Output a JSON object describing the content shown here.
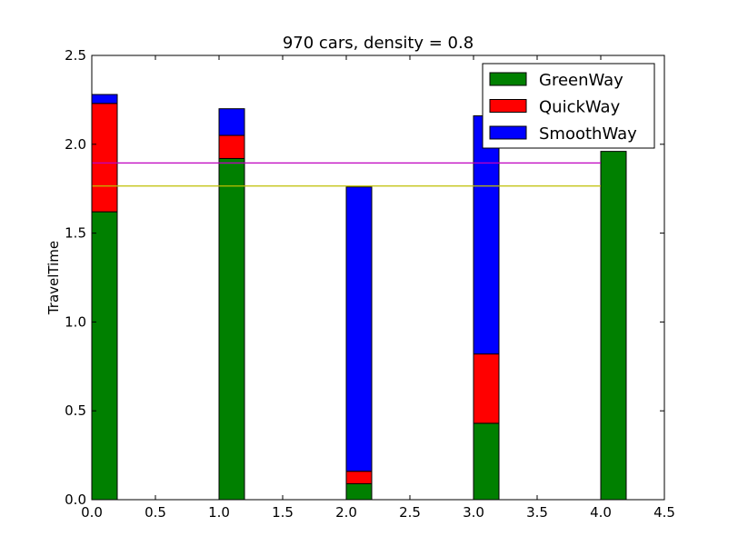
{
  "chart_data": {
    "type": "bar",
    "stacked": true,
    "title": "970 cars, density = 0.8",
    "xlabel": "",
    "ylabel": "TravelTime",
    "xlim": [
      0.0,
      4.5
    ],
    "ylim": [
      0.0,
      2.5
    ],
    "xticks": [
      "0.0",
      "0.5",
      "1.0",
      "1.5",
      "2.0",
      "2.5",
      "3.0",
      "3.5",
      "4.0",
      "4.5"
    ],
    "yticks": [
      "0.0",
      "0.5",
      "1.0",
      "1.5",
      "2.0",
      "2.5"
    ],
    "bar_width": 0.2,
    "x": [
      0,
      1,
      2,
      3,
      4
    ],
    "series": [
      {
        "name": "GreenWay",
        "color": "#008000",
        "values": [
          1.62,
          1.92,
          0.09,
          0.43,
          1.96
        ]
      },
      {
        "name": "QuickWay",
        "color": "#ff0000",
        "values": [
          0.61,
          0.13,
          0.07,
          0.39,
          0.0
        ]
      },
      {
        "name": "SmoothWay",
        "color": "#0000ff",
        "values": [
          0.05,
          0.15,
          1.6,
          1.34,
          0.0
        ]
      }
    ],
    "reference_lines": [
      {
        "color": "#bf00bf",
        "y": 1.895,
        "x": [
          0.0,
          4.0
        ]
      },
      {
        "color": "#bfbf00",
        "y": 1.765,
        "x": [
          0.0,
          4.0
        ]
      }
    ],
    "legend": {
      "position": "top-right",
      "entries": [
        "GreenWay",
        "QuickWay",
        "SmoothWay"
      ]
    },
    "grid": false
  }
}
